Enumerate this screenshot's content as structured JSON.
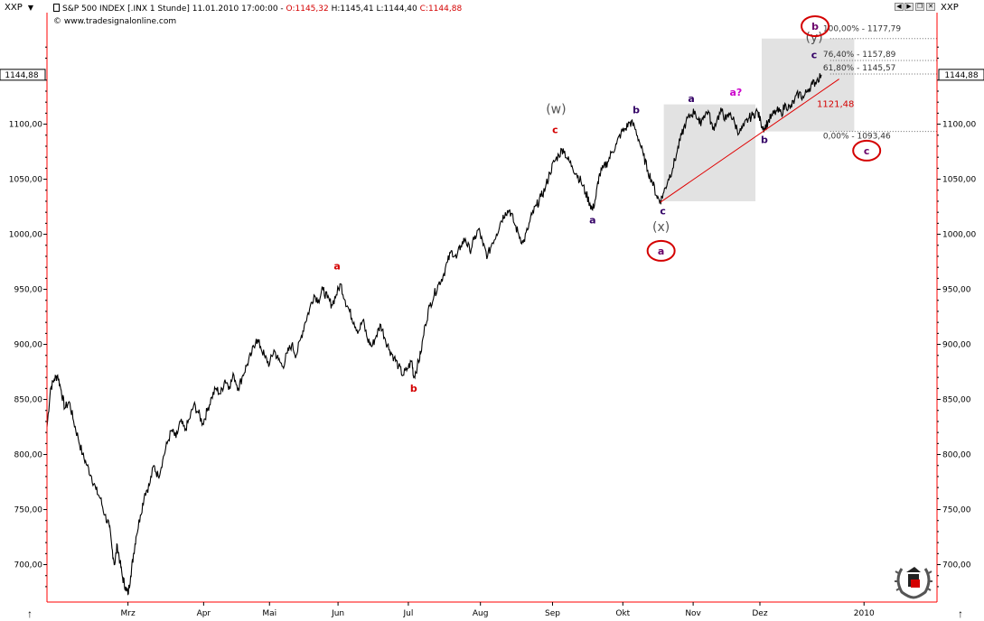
{
  "header": {
    "symbol_left": "XXP",
    "symbol_right": "XXP",
    "instrument": "S&P 500 INDEX [.INX  1 Stunde] 11.01.2010 17:00:00 -",
    "open": "O:1145,32",
    "high": "H:1145,41",
    "low": "L:1144,40",
    "close": "C:1144,88",
    "copyright": "© www.tradesignalonline.com"
  },
  "colors": {
    "accent": "#d40000",
    "wave_purple": "#330066",
    "wave_magenta": "#cc00cc",
    "wave_gray": "#555555",
    "zone_fill": "#d8d8d8"
  },
  "chart_data": {
    "type": "line",
    "title": "S&P 500 INDEX [.INX 1 Stunde]",
    "xlabel": "",
    "ylabel": "",
    "ylim": [
      666,
      1180
    ],
    "xlim": [
      0,
      100
    ],
    "y_ticks": [
      700,
      750,
      800,
      850,
      900,
      950,
      1000,
      1050,
      1100
    ],
    "y_tick_labels": [
      "700,00",
      "750,00",
      "800,00",
      "850,00",
      "900,00",
      "950,00",
      "1000,00",
      "1050,00",
      "1100,00"
    ],
    "last_price_label": "1144,88",
    "last_price": 1144.88,
    "x_ticks": [
      {
        "label": "Mrz",
        "x": 9.1
      },
      {
        "label": "Apr",
        "x": 17.6
      },
      {
        "label": "Mai",
        "x": 25.0
      },
      {
        "label": "Jun",
        "x": 32.7
      },
      {
        "label": "Jul",
        "x": 40.6
      },
      {
        "label": "Aug",
        "x": 48.7
      },
      {
        "label": "Sep",
        "x": 56.8
      },
      {
        "label": "Okt",
        "x": 64.7
      },
      {
        "label": "Nov",
        "x": 72.6
      },
      {
        "label": "Dez",
        "x": 80.1
      },
      {
        "label": "2010",
        "x": 91.8
      }
    ],
    "series": [
      {
        "name": "S&P 500",
        "points": [
          [
            0,
            825
          ],
          [
            0.4,
            860
          ],
          [
            0.8,
            868
          ],
          [
            1.2,
            872
          ],
          [
            1.6,
            858
          ],
          [
            2,
            842
          ],
          [
            2.5,
            848
          ],
          [
            3,
            830
          ],
          [
            3.5,
            815
          ],
          [
            4,
            800
          ],
          [
            4.5,
            790
          ],
          [
            5,
            780
          ],
          [
            5.5,
            768
          ],
          [
            6,
            760
          ],
          [
            6.5,
            745
          ],
          [
            7,
            735
          ],
          [
            7.3,
            715
          ],
          [
            7.6,
            700
          ],
          [
            7.9,
            718
          ],
          [
            8.2,
            702
          ],
          [
            8.5,
            688
          ],
          [
            8.8,
            680
          ],
          [
            9.1,
            673
          ],
          [
            9.4,
            690
          ],
          [
            9.7,
            708
          ],
          [
            10,
            725
          ],
          [
            10.5,
            745
          ],
          [
            11,
            765
          ],
          [
            11.5,
            772
          ],
          [
            12,
            790
          ],
          [
            12.5,
            780
          ],
          [
            13,
            795
          ],
          [
            13.5,
            810
          ],
          [
            14,
            822
          ],
          [
            14.5,
            815
          ],
          [
            15,
            830
          ],
          [
            15.5,
            822
          ],
          [
            16,
            832
          ],
          [
            16.5,
            845
          ],
          [
            17,
            838
          ],
          [
            17.5,
            828
          ],
          [
            18,
            840
          ],
          [
            18.5,
            852
          ],
          [
            19,
            860
          ],
          [
            19.5,
            855
          ],
          [
            20,
            868
          ],
          [
            20.5,
            862
          ],
          [
            21,
            872
          ],
          [
            21.5,
            860
          ],
          [
            22,
            872
          ],
          [
            22.5,
            882
          ],
          [
            23,
            892
          ],
          [
            23.5,
            905
          ],
          [
            24,
            898
          ],
          [
            24.5,
            888
          ],
          [
            25,
            882
          ],
          [
            25.5,
            895
          ],
          [
            26,
            886
          ],
          [
            26.5,
            880
          ],
          [
            27,
            892
          ],
          [
            27.5,
            900
          ],
          [
            28,
            890
          ],
          [
            28.5,
            905
          ],
          [
            29,
            920
          ],
          [
            29.5,
            932
          ],
          [
            30,
            945
          ],
          [
            30.5,
            940
          ],
          [
            31,
            950
          ],
          [
            31.5,
            942
          ],
          [
            32,
            936
          ],
          [
            32.5,
            945
          ],
          [
            33,
            955
          ],
          [
            33.5,
            940
          ],
          [
            34,
            930
          ],
          [
            34.5,
            920
          ],
          [
            35,
            912
          ],
          [
            35.5,
            922
          ],
          [
            36,
            905
          ],
          [
            36.5,
            898
          ],
          [
            37,
            908
          ],
          [
            37.5,
            918
          ],
          [
            38,
            905
          ],
          [
            38.5,
            895
          ],
          [
            39,
            888
          ],
          [
            39.5,
            880
          ],
          [
            40,
            872
          ],
          [
            40.5,
            878
          ],
          [
            41,
            885
          ],
          [
            41.2,
            870
          ],
          [
            41.6,
            880
          ],
          [
            42,
            892
          ],
          [
            42.5,
            918
          ],
          [
            43,
            935
          ],
          [
            43.5,
            945
          ],
          [
            44,
            955
          ],
          [
            44.5,
            962
          ],
          [
            45,
            975
          ],
          [
            45.5,
            985
          ],
          [
            46,
            978
          ],
          [
            46.5,
            990
          ],
          [
            47,
            996
          ],
          [
            47.5,
            985
          ],
          [
            48,
            995
          ],
          [
            48.5,
            1005
          ],
          [
            49,
            990
          ],
          [
            49.5,
            980
          ],
          [
            50,
            992
          ],
          [
            50.5,
            1000
          ],
          [
            51,
            1012
          ],
          [
            51.5,
            1020
          ],
          [
            52,
            1022
          ],
          [
            52.5,
            1010
          ],
          [
            53,
            1000
          ],
          [
            53.5,
            992
          ],
          [
            54,
            1004
          ],
          [
            54.5,
            1018
          ],
          [
            55,
            1026
          ],
          [
            55.5,
            1034
          ],
          [
            56,
            1042
          ],
          [
            56.5,
            1056
          ],
          [
            57,
            1066
          ],
          [
            57.5,
            1072
          ],
          [
            58,
            1078
          ],
          [
            58.5,
            1068
          ],
          [
            59,
            1062
          ],
          [
            59.5,
            1055
          ],
          [
            60,
            1048
          ],
          [
            60.5,
            1038
          ],
          [
            61,
            1028
          ],
          [
            61.3,
            1022
          ],
          [
            61.7,
            1035
          ],
          [
            62,
            1052
          ],
          [
            62.5,
            1060
          ],
          [
            63,
            1066
          ],
          [
            63.5,
            1075
          ],
          [
            64,
            1082
          ],
          [
            64.5,
            1092
          ],
          [
            65,
            1096
          ],
          [
            65.5,
            1102
          ],
          [
            66,
            1098
          ],
          [
            66.5,
            1086
          ],
          [
            67,
            1072
          ],
          [
            67.5,
            1058
          ],
          [
            68,
            1048
          ],
          [
            68.5,
            1035
          ],
          [
            68.9,
            1030
          ],
          [
            69.3,
            1038
          ],
          [
            69.8,
            1050
          ],
          [
            70.3,
            1060
          ],
          [
            70.8,
            1075
          ],
          [
            71.3,
            1090
          ],
          [
            71.8,
            1102
          ],
          [
            72.3,
            1108
          ],
          [
            72.8,
            1112
          ],
          [
            73.3,
            1100
          ],
          [
            73.8,
            1108
          ],
          [
            74.3,
            1112
          ],
          [
            74.8,
            1095
          ],
          [
            75.3,
            1105
          ],
          [
            75.8,
            1112
          ],
          [
            76.3,
            1104
          ],
          [
            76.8,
            1110
          ],
          [
            77.3,
            1100
          ],
          [
            77.8,
            1092
          ],
          [
            78.3,
            1098
          ],
          [
            78.8,
            1105
          ],
          [
            79.3,
            1108
          ],
          [
            79.8,
            1112
          ],
          [
            80.2,
            1102
          ],
          [
            80.6,
            1096
          ],
          [
            81,
            1102
          ],
          [
            81.5,
            1108
          ],
          [
            82,
            1112
          ],
          [
            82.5,
            1110
          ],
          [
            83,
            1118
          ],
          [
            83.5,
            1114
          ],
          [
            84,
            1122
          ],
          [
            84.5,
            1128
          ],
          [
            85,
            1124
          ],
          [
            85.5,
            1132
          ],
          [
            86,
            1136
          ],
          [
            86.5,
            1140
          ],
          [
            87,
            1145
          ]
        ]
      }
    ],
    "trendline": {
      "x1": 68.9,
      "y1": 1029,
      "x2": 89,
      "y2": 1141,
      "label": "1121,48"
    },
    "fib_levels": [
      {
        "label": "100,00% - 1177,79",
        "value": 1177.79
      },
      {
        "label": "76,40% - 1157,89",
        "value": 1157.89
      },
      {
        "label": "61,80% - 1145,57",
        "value": 1145.57
      },
      {
        "label": "0,00% - 1093,46",
        "value": 1093.46
      }
    ],
    "zones": [
      {
        "name": "zone-left",
        "x1": 69.3,
        "x2": 79.6,
        "y1": 1030,
        "y2": 1118
      },
      {
        "name": "zone-right",
        "x1": 80.3,
        "x2": 90.7,
        "y1": 1093.46,
        "y2": 1177.79
      }
    ],
    "annotations": [
      {
        "text": "a",
        "x": 32.6,
        "y": 968,
        "color": "#d40000",
        "style": "bold"
      },
      {
        "text": "b",
        "x": 41.2,
        "y": 857,
        "color": "#d40000",
        "style": "bold"
      },
      {
        "text": "(w)",
        "x": 57.2,
        "y": 1110,
        "color": "#555555",
        "style": "paren"
      },
      {
        "text": "c",
        "x": 57.1,
        "y": 1092,
        "color": "#d40000",
        "style": "bold"
      },
      {
        "text": "a",
        "x": 61.3,
        "y": 1010,
        "color": "#330066",
        "style": "bold"
      },
      {
        "text": "b",
        "x": 66.2,
        "y": 1110,
        "color": "#330066",
        "style": "bold"
      },
      {
        "text": "c",
        "x": 69.2,
        "y": 1018,
        "color": "#330066",
        "style": "bold"
      },
      {
        "text": "(x)",
        "x": 69.0,
        "y": 1003,
        "color": "#555555",
        "style": "paren"
      },
      {
        "text": "a",
        "x": 72.4,
        "y": 1120,
        "color": "#330066",
        "style": "bold"
      },
      {
        "text": "a?",
        "x": 77.4,
        "y": 1126,
        "color": "#cc00cc",
        "style": "bold"
      },
      {
        "text": "b",
        "x": 80.6,
        "y": 1083,
        "color": "#330066",
        "style": "bold"
      },
      {
        "text": "(y)",
        "x": 86.2,
        "y": 1175,
        "color": "#555555",
        "style": "paren"
      },
      {
        "text": "c",
        "x": 86.2,
        "y": 1160,
        "color": "#330066",
        "style": "bold"
      }
    ],
    "circled_labels": [
      {
        "text": "b",
        "x": 86.3,
        "y": 1189
      },
      {
        "text": "a",
        "x": 69.0,
        "y": 985
      },
      {
        "text": "c",
        "x": 92.1,
        "y": 1076
      }
    ]
  }
}
